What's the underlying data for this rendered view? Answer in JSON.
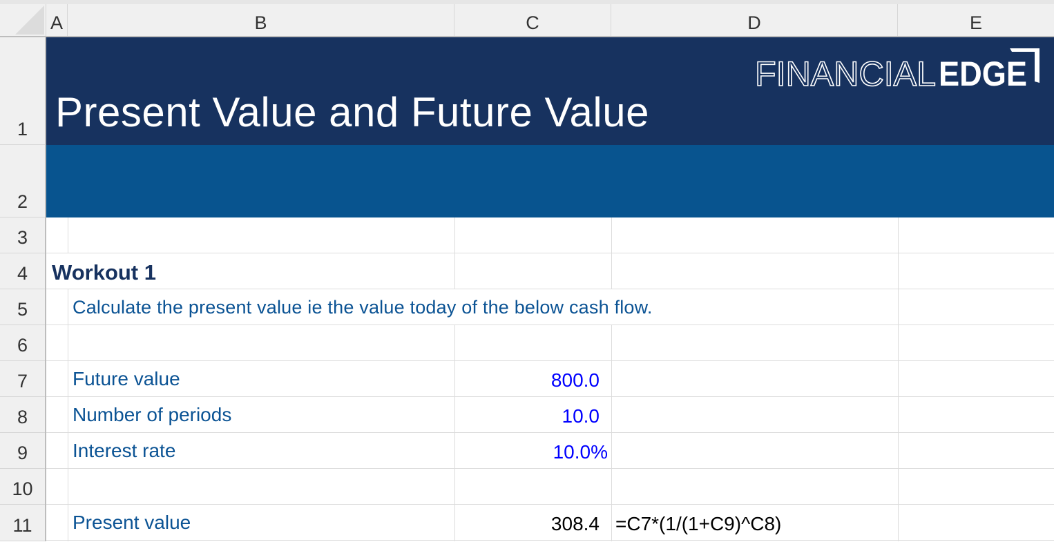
{
  "columns": [
    "A",
    "B",
    "C",
    "D",
    "E"
  ],
  "rows": [
    "1",
    "2",
    "3",
    "4",
    "5",
    "6",
    "7",
    "8",
    "9",
    "10",
    "11"
  ],
  "header": {
    "title": "Present Value and Future Value",
    "logo_text": "FINANCIALEDGE",
    "logo_light": "FINANCIAL",
    "logo_bold": "EDGE"
  },
  "workout": {
    "heading": "Workout 1",
    "instruction": "Calculate the present value ie the value today of the below cash flow.",
    "inputs": [
      {
        "label": "Future value",
        "value": "800.0"
      },
      {
        "label": "Number of periods",
        "value": "10.0"
      },
      {
        "label": "Interest rate",
        "value": "10.0%"
      }
    ],
    "result": {
      "label": "Present value",
      "value": "308.4",
      "formula": "=C7*(1/(1+C9)^C8)"
    }
  },
  "colors": {
    "header_navy": "#17325f",
    "header_blue": "#08548f",
    "label_blue": "#0b5394",
    "input_blue": "#0000ff"
  }
}
